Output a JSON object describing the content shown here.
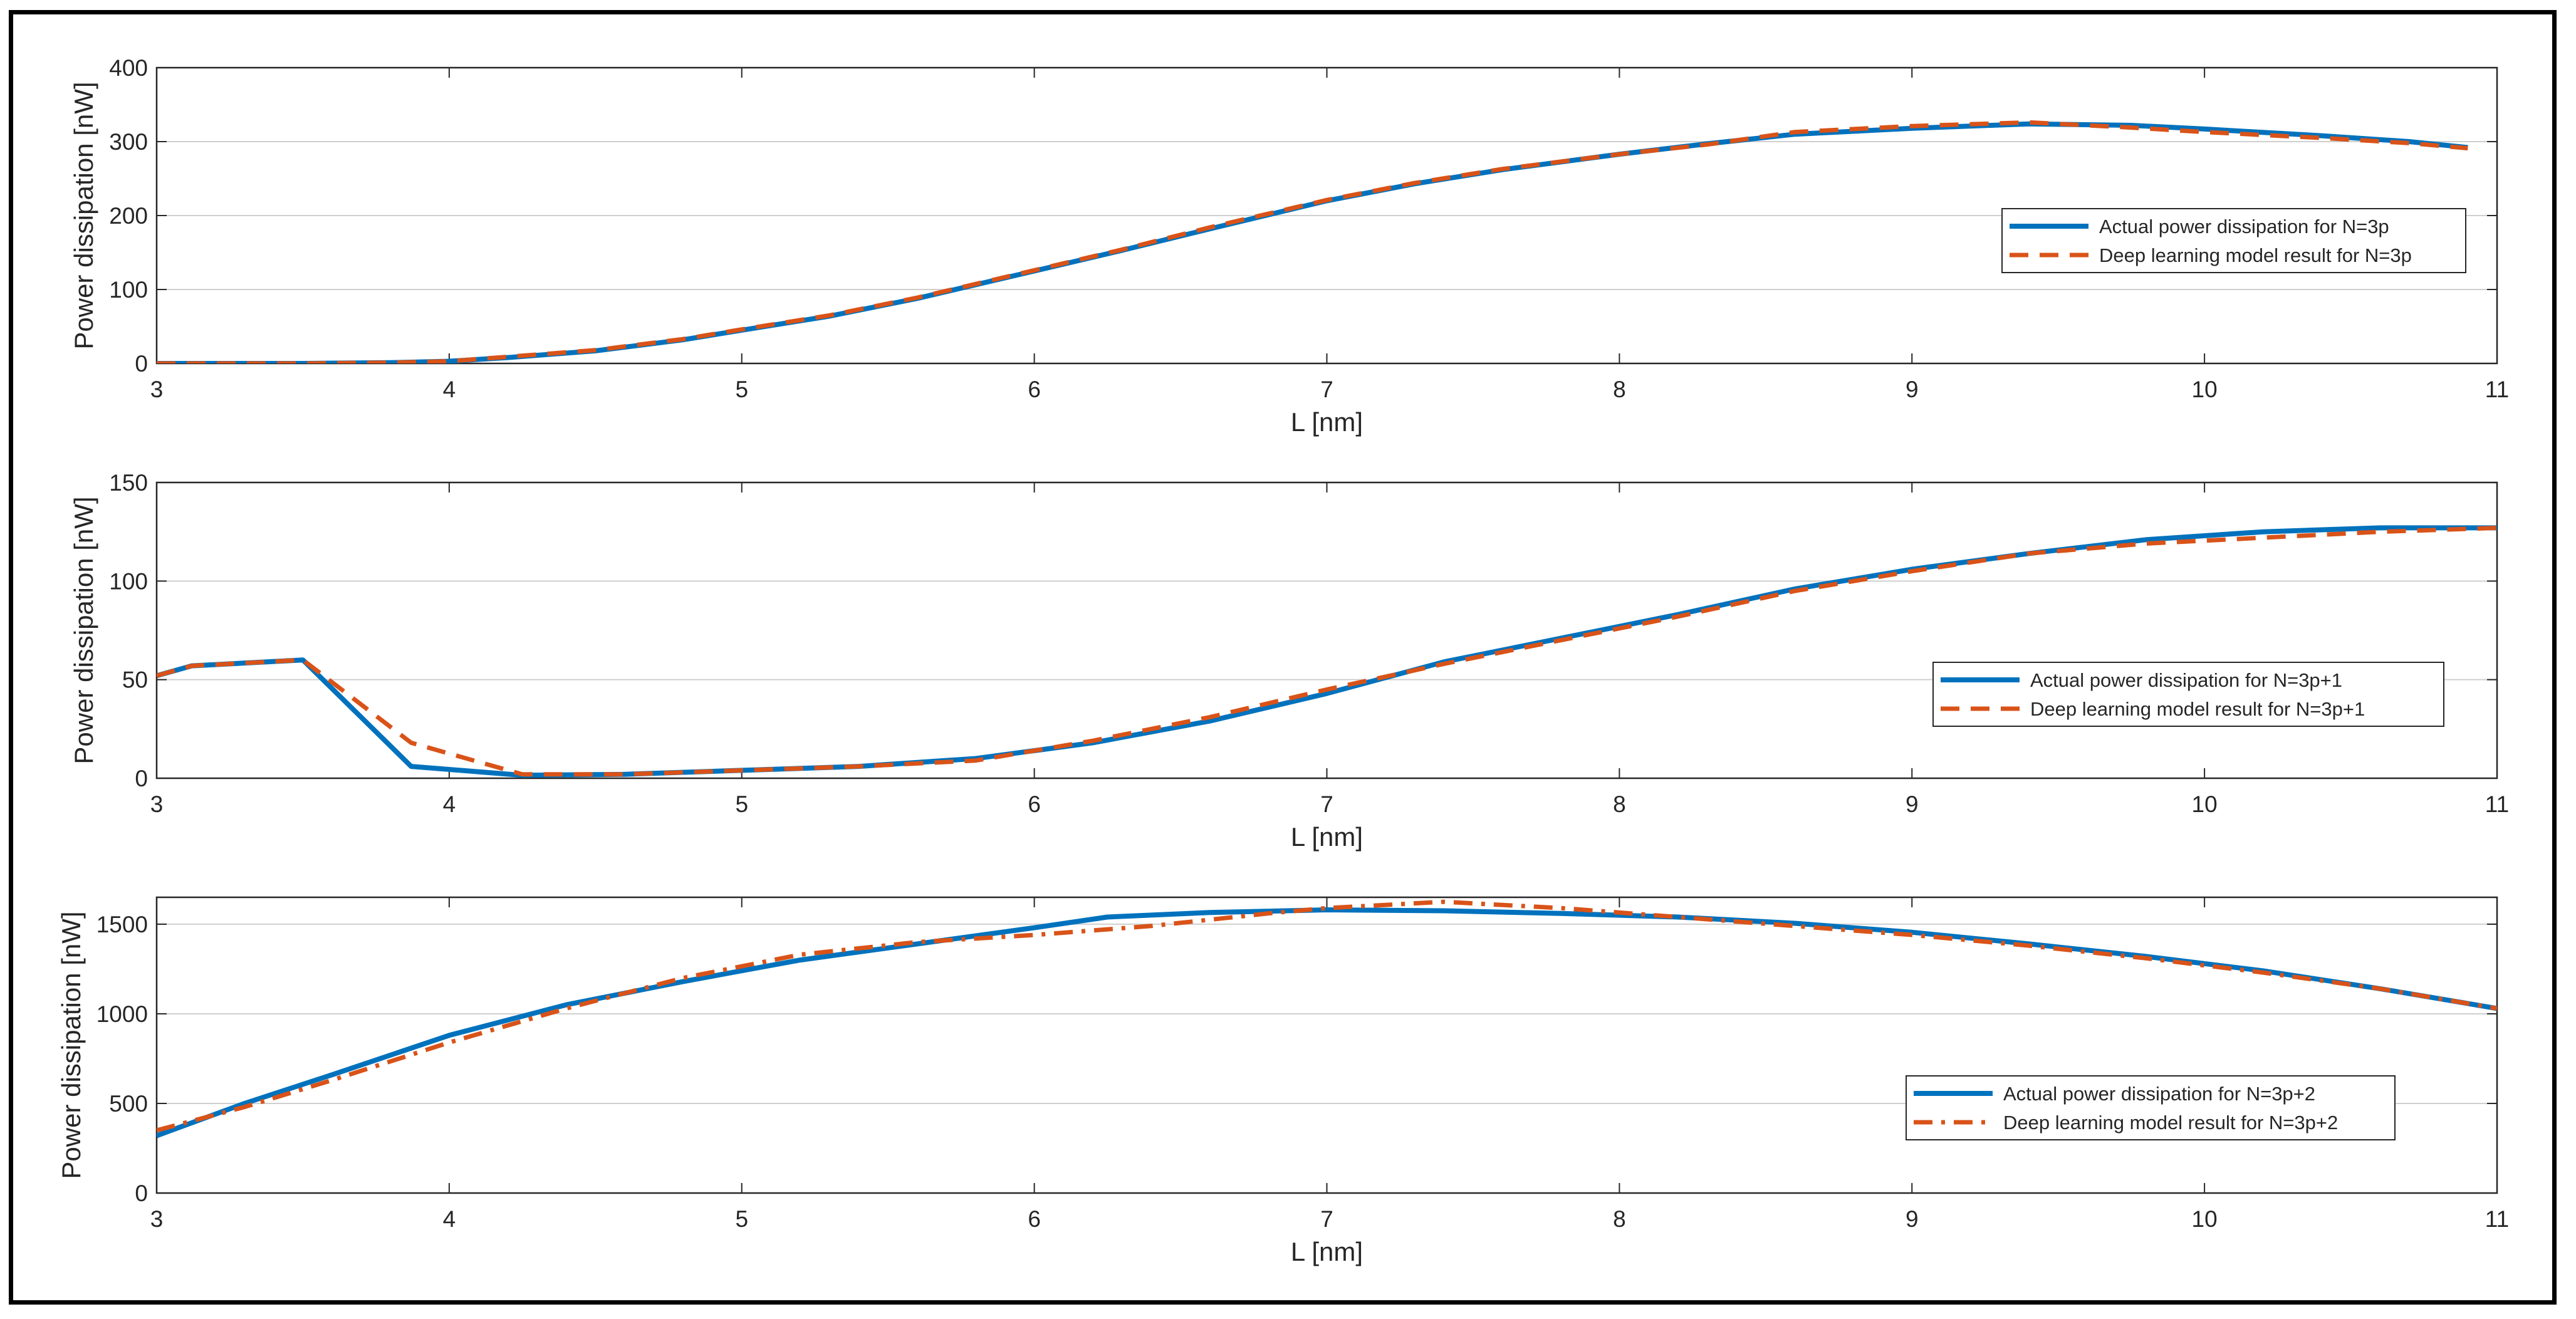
{
  "colors": {
    "actual": "#0072BD",
    "model": "#D95319",
    "axis": "#262626",
    "grid": "#262626"
  },
  "chart_data": [
    {
      "type": "line",
      "xlabel": "L [nm]",
      "ylabel": "Power dissipation [nW]",
      "xlim": [
        3,
        11
      ],
      "ylim": [
        0,
        400
      ],
      "xticks": [
        "3",
        "4",
        "5",
        "6",
        "7",
        "8",
        "9",
        "10",
        "11"
      ],
      "yticks": [
        "0",
        "100",
        "200",
        "300",
        "400"
      ],
      "grid": "horizontal",
      "legend_position": "right",
      "series": [
        {
          "name": "Actual power dissipation for N=3p",
          "style": "solid",
          "x": [
            3.0,
            3.5,
            3.8,
            4.0,
            4.2,
            4.5,
            4.8,
            5.0,
            5.3,
            5.6,
            6.0,
            6.3,
            6.6,
            7.0,
            7.3,
            7.6,
            8.0,
            8.3,
            8.6,
            9.0,
            9.4,
            9.75,
            10.0,
            10.4,
            10.7,
            10.9
          ],
          "y": [
            0,
            0,
            1,
            3,
            8,
            17,
            32,
            45,
            64,
            88,
            125,
            153,
            182,
            220,
            243,
            262,
            283,
            297,
            310,
            318,
            324,
            322,
            317,
            308,
            300,
            292
          ]
        },
        {
          "name": "Deep learning model result for N=3p",
          "style": "dashed",
          "x": [
            3.0,
            3.5,
            3.8,
            4.0,
            4.2,
            4.5,
            4.8,
            5.0,
            5.3,
            5.6,
            6.0,
            6.3,
            6.6,
            7.0,
            7.3,
            7.6,
            8.0,
            8.3,
            8.6,
            9.0,
            9.4,
            9.75,
            10.0,
            10.4,
            10.7,
            10.9
          ],
          "y": [
            0,
            0,
            1,
            3,
            9,
            18,
            33,
            46,
            65,
            89,
            126,
            154,
            184,
            221,
            244,
            263,
            283,
            296,
            313,
            321,
            326,
            319,
            313,
            305,
            298,
            291
          ]
        }
      ]
    },
    {
      "type": "line",
      "xlabel": "L [nm]",
      "ylabel": "Power dissipation [nW]",
      "xlim": [
        3,
        11
      ],
      "ylim": [
        0,
        150
      ],
      "xticks": [
        "3",
        "4",
        "5",
        "6",
        "7",
        "8",
        "9",
        "10",
        "11"
      ],
      "yticks": [
        "0",
        "50",
        "100",
        "150"
      ],
      "grid": "horizontal",
      "legend_position": "right",
      "series": [
        {
          "name": "Actual power dissipation for N=3p+1",
          "style": "solid",
          "x": [
            3.0,
            3.12,
            3.5,
            3.87,
            4.25,
            4.6,
            5.0,
            5.4,
            5.8,
            6.2,
            6.6,
            7.0,
            7.4,
            7.8,
            8.2,
            8.6,
            9.0,
            9.4,
            9.8,
            10.2,
            10.6,
            11.0
          ],
          "y": [
            52,
            57,
            60,
            6,
            1.5,
            2,
            4,
            6,
            10,
            18,
            29,
            43,
            59,
            71,
            83,
            96,
            106,
            114,
            121,
            125,
            127,
            127
          ]
        },
        {
          "name": "Deep learning model result for N=3p+1",
          "style": "dashed",
          "x": [
            3.0,
            3.12,
            3.5,
            3.87,
            4.25,
            4.6,
            5.0,
            5.4,
            5.8,
            6.2,
            6.6,
            7.0,
            7.4,
            7.8,
            8.2,
            8.6,
            9.0,
            9.4,
            9.8,
            10.2,
            10.6,
            11.0
          ],
          "y": [
            52,
            57,
            60,
            18,
            2,
            2,
            4,
            6,
            9,
            19,
            31,
            45,
            58,
            70,
            82,
            95,
            105,
            114,
            119,
            122,
            125,
            127
          ]
        }
      ]
    },
    {
      "type": "line",
      "xlabel": "L [nm]",
      "ylabel": "Power dissipation [nW]",
      "xlim": [
        3,
        11
      ],
      "ylim": [
        0,
        1650
      ],
      "xticks": [
        "3",
        "4",
        "5",
        "6",
        "7",
        "8",
        "9",
        "10",
        "11"
      ],
      "yticks": [
        "0",
        "500",
        "1000",
        "1500"
      ],
      "grid": "horizontal",
      "legend_position": "bottom-right",
      "series": [
        {
          "name": "Actual power dissipation for N=3p+2",
          "style": "solid",
          "x": [
            3.0,
            3.3,
            3.6,
            4.0,
            4.4,
            4.8,
            5.2,
            5.6,
            6.0,
            6.25,
            6.6,
            7.0,
            7.4,
            7.8,
            8.2,
            8.6,
            9.0,
            9.4,
            9.8,
            10.2,
            10.6,
            11.0
          ],
          "y": [
            320,
            500,
            660,
            880,
            1050,
            1180,
            1300,
            1390,
            1480,
            1540,
            1565,
            1580,
            1575,
            1560,
            1540,
            1505,
            1455,
            1390,
            1320,
            1240,
            1140,
            1030
          ]
        },
        {
          "name": "Deep learning model result for N=3p+2",
          "style": "dashdot",
          "x": [
            3.0,
            3.3,
            3.6,
            4.0,
            4.4,
            4.8,
            5.2,
            5.6,
            6.0,
            6.4,
            6.8,
            7.0,
            7.4,
            7.8,
            8.2,
            8.6,
            9.0,
            9.4,
            9.8,
            10.2,
            10.6,
            11.0
          ],
          "y": [
            350,
            480,
            630,
            840,
            1030,
            1200,
            1330,
            1400,
            1440,
            1490,
            1560,
            1590,
            1625,
            1590,
            1540,
            1490,
            1440,
            1380,
            1310,
            1230,
            1140,
            1030
          ]
        }
      ]
    }
  ]
}
